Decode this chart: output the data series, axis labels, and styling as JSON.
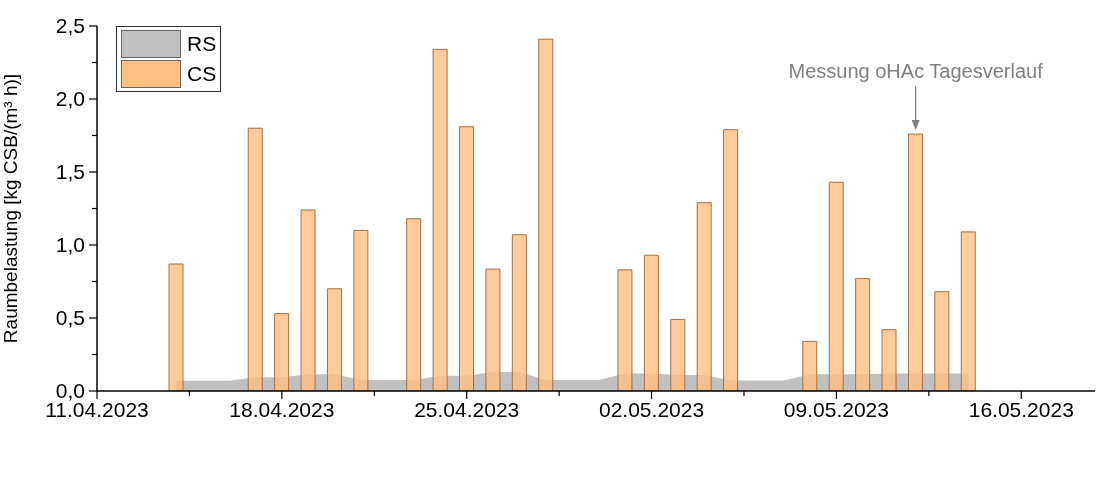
{
  "chart_data": {
    "type": "bar",
    "ylabel": "Raumbelastung [kg CSB/(m³ h)]",
    "xlim": [
      "2023-04-11",
      "2023-05-18T19:00"
    ],
    "xticks": [
      {
        "value": "2023-04-11",
        "label": "11.04.2023"
      },
      {
        "value": "2023-04-14T12:00",
        "label": null
      },
      {
        "value": "2023-04-18",
        "label": "18.04.2023"
      },
      {
        "value": "2023-04-21T12:00",
        "label": null
      },
      {
        "value": "2023-04-25",
        "label": "25.04.2023"
      },
      {
        "value": "2023-04-28T12:00",
        "label": null
      },
      {
        "value": "2023-05-02",
        "label": "02.05.2023"
      },
      {
        "value": "2023-05-05T12:00",
        "label": null
      },
      {
        "value": "2023-05-09",
        "label": "09.05.2023"
      },
      {
        "value": "2023-05-12T12:00",
        "label": null
      },
      {
        "value": "2023-05-16",
        "label": "16.05.2023"
      }
    ],
    "ylim": [
      0,
      2.5
    ],
    "yticks": [
      {
        "value": 0,
        "label": "0,0"
      },
      {
        "value": 0.25,
        "label": null
      },
      {
        "value": 0.5,
        "label": "0,5"
      },
      {
        "value": 0.75,
        "label": null
      },
      {
        "value": 1,
        "label": "1,0"
      },
      {
        "value": 1.25,
        "label": null
      },
      {
        "value": 1.5,
        "label": "1,5"
      },
      {
        "value": 1.75,
        "label": null
      },
      {
        "value": 2,
        "label": "2,0"
      },
      {
        "value": 2.25,
        "label": null
      },
      {
        "value": 2.5,
        "label": "2,5"
      }
    ],
    "legend": "top left",
    "series": [
      {
        "name": "RS",
        "type": "area",
        "color": "#c0c0c0",
        "x": [
          "2023-04-14",
          "2023-04-16",
          "2023-04-17",
          "2023-04-18",
          "2023-04-19",
          "2023-04-20",
          "2023-04-21",
          "2023-04-23",
          "2023-04-24",
          "2023-04-25",
          "2023-04-26",
          "2023-04-27",
          "2023-04-28",
          "2023-04-30",
          "2023-05-01",
          "2023-05-02",
          "2023-05-03",
          "2023-05-04",
          "2023-05-05",
          "2023-05-07",
          "2023-05-08",
          "2023-05-09",
          "2023-05-10",
          "2023-05-11",
          "2023-05-12",
          "2023-05-13",
          "2023-05-14"
        ],
        "values": [
          0.07,
          0.07,
          0.095,
          0.095,
          0.115,
          0.115,
          0.075,
          0.075,
          0.105,
          0.105,
          0.13,
          0.13,
          0.075,
          0.075,
          0.12,
          0.12,
          0.11,
          0.11,
          0.072,
          0.072,
          0.115,
          0.115,
          0.115,
          0.12,
          0.12,
          0.12,
          0.12
        ]
      },
      {
        "name": "CS",
        "color": "#ffbf80",
        "x": [
          "2023-04-14",
          "2023-04-17",
          "2023-04-18",
          "2023-04-19",
          "2023-04-20",
          "2023-04-21",
          "2023-04-23",
          "2023-04-24",
          "2023-04-25",
          "2023-04-26",
          "2023-04-27",
          "2023-04-28",
          "2023-05-01",
          "2023-05-02",
          "2023-05-03",
          "2023-05-04",
          "2023-05-05",
          "2023-05-08",
          "2023-05-09",
          "2023-05-10",
          "2023-05-11",
          "2023-05-12",
          "2023-05-13",
          "2023-05-14"
        ],
        "values": [
          0.87,
          1.8,
          0.53,
          1.24,
          0.7,
          1.1,
          1.18,
          2.34,
          1.81,
          0.835,
          1.07,
          2.41,
          0.83,
          0.93,
          0.49,
          1.29,
          1.79,
          0.34,
          1.43,
          0.77,
          0.42,
          1.76,
          0.68,
          1.09
        ]
      }
    ],
    "annotations": [
      {
        "text": "Messung oHAc Tagesverlauf",
        "x": "2023-05-12",
        "y": 1.76
      }
    ]
  }
}
